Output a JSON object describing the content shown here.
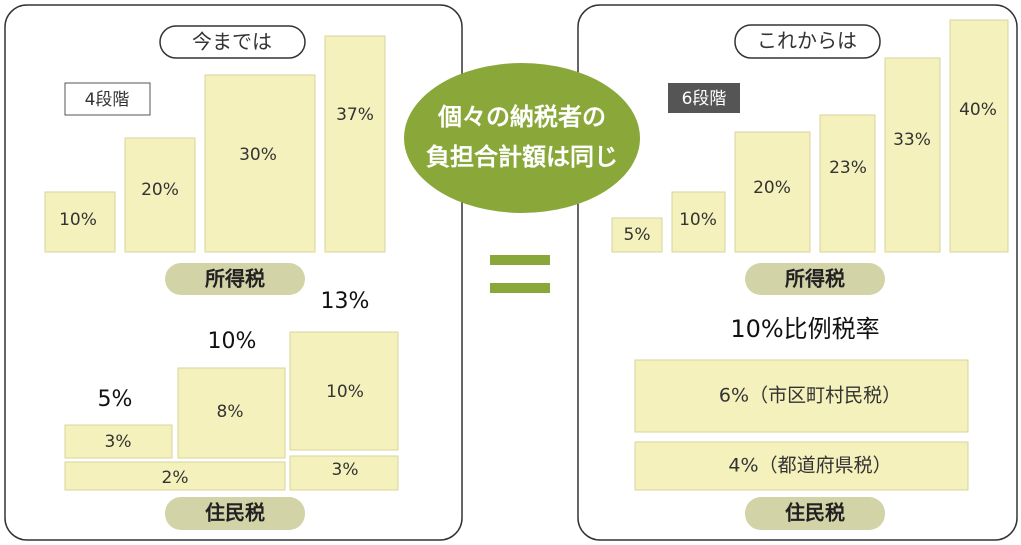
{
  "left": {
    "title": "今までは",
    "badge": "4段階",
    "income_tax": {
      "label": "所得税",
      "bars": [
        "10%",
        "20%",
        "30%",
        "37%"
      ]
    },
    "resident_tax": {
      "label": "住民税",
      "totals": [
        "5%",
        "10%",
        "13%"
      ],
      "municipal": [
        "3%",
        "8%",
        "10%"
      ],
      "prefectural": [
        "2%",
        "3%"
      ]
    }
  },
  "center": {
    "message_line1": "個々の納税者の",
    "message_line2": "負担合計額は同じ"
  },
  "right": {
    "title": "これからは",
    "badge": "6段階",
    "income_tax": {
      "label": "所得税",
      "bars": [
        "5%",
        "10%",
        "20%",
        "23%",
        "33%",
        "40%"
      ]
    },
    "resident_tax": {
      "label": "住民税",
      "rate": "10%比例税率",
      "municipal": "6%（市区町村民税）",
      "prefectural": "4%（都道府県税）"
    }
  }
}
